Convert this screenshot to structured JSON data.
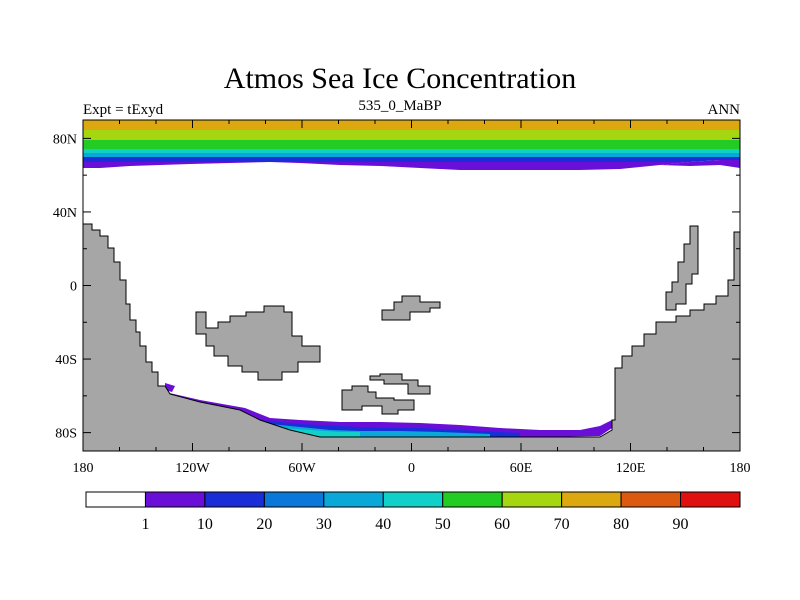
{
  "header": {
    "title": "Atmos Sea Ice Concentration",
    "left_label": "Expt = tExyd",
    "center_label": "535_0_MaBP",
    "right_label": "ANN"
  },
  "map": {
    "projection": "cylindrical-equidistant",
    "lon_range": [
      -180,
      180
    ],
    "lat_range": [
      -90,
      90
    ],
    "x_ticks": [
      "180",
      "120W",
      "60W",
      "0",
      "60E",
      "120E",
      "180"
    ],
    "y_ticks": [
      "80N",
      "40N",
      "0",
      "40S",
      "80S"
    ],
    "land_color": "#a6a6a6",
    "ocean_color": "#ffffff"
  },
  "colorbar": {
    "labels": [
      "1",
      "10",
      "20",
      "30",
      "40",
      "50",
      "60",
      "70",
      "80",
      "90"
    ],
    "colors": [
      "#ffffff",
      "#6a0fd8",
      "#1a2ed8",
      "#0a78d8",
      "#0aa8d8",
      "#10d0c8",
      "#22cc22",
      "#a6d610",
      "#dca810",
      "#dc5a10",
      "#e01010"
    ]
  }
}
